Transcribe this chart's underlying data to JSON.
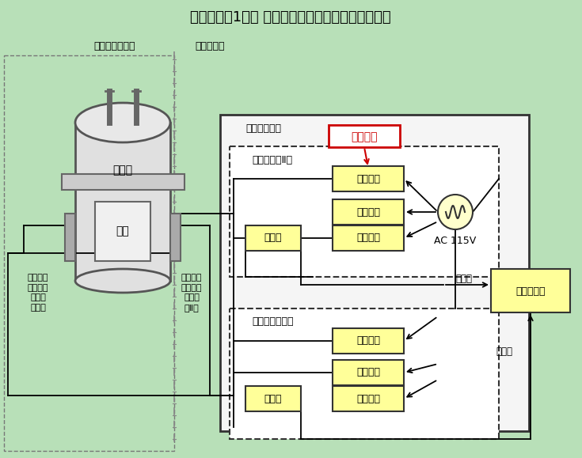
{
  "title": "伊方発電所1号機 中間領域中性子束検出回路概略図",
  "bg_color": "#b8e0b8",
  "box_fill_yellow": "#ffff99",
  "box_fill_white": "#f0f0f0",
  "box_fill_reactor": "#e8e8e8",
  "box_fill_central": "#ffff99",
  "border_color": "#333333",
  "dashed_border": "#555555",
  "label_atm_container": "原子炉格納容器",
  "label_central_room": "中央制御室",
  "label_reactor": "原子炉",
  "label_fuel": "燃料",
  "label_detector_I": "中間領域\n中性子束\n検出器\n（Ｉ）",
  "label_detector_II": "中間領域\n中性子束\n検出器\n（Ⅱ）",
  "label_instrument_panel": "炉外核計装盤",
  "label_region_II": "中間領域（Ⅱ）",
  "label_region_I": "中間領域（Ｉ）",
  "label_high_volt_II": "高圧電源",
  "label_comp_power_II": "補償電源",
  "label_amp_II": "増幅器",
  "label_low_volt_II": "低圧電源",
  "label_high_volt_I": "高圧電源",
  "label_comp_power_I": "補償電源",
  "label_amp_I": "増幅器",
  "label_low_volt_I": "低圧電源",
  "label_ac": "AC 115V",
  "label_central_panel": "中央制御盤",
  "label_shiji1": "指示値",
  "label_shiji2": "指示値",
  "label_touhaisho": "当該箇所",
  "red_color": "#cc0000",
  "arrow_color": "#000000"
}
